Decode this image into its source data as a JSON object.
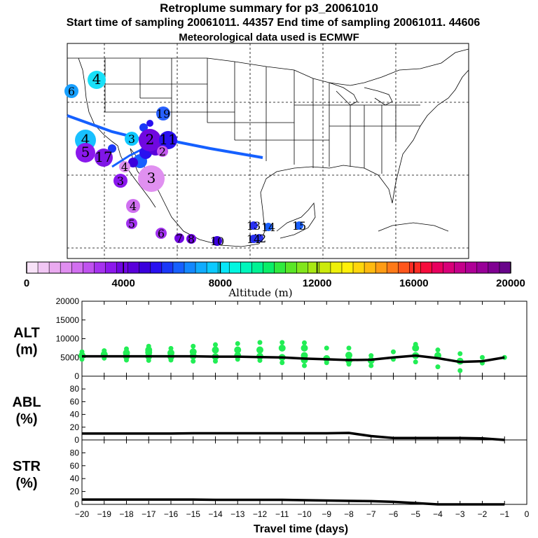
{
  "header": {
    "title": "Retroplume summary for p3_20061010",
    "sampling_line": "Start time of sampling 20061011. 44357     End time of sampling 20061011. 44606",
    "met_line": "Meteorological data used is ECMWF"
  },
  "colors": {
    "line": "#000000",
    "track": "#1560ff",
    "scatter": "#22ee55"
  },
  "colorbar": {
    "min": 0,
    "max": 20000,
    "tick_labels": [
      "0",
      "4000",
      "8000",
      "12000",
      "16000",
      "20000"
    ],
    "tick_values": [
      0,
      4000,
      8000,
      12000,
      16000,
      20000
    ],
    "label": "Altitude (m)",
    "colors": [
      "#f8e2f8",
      "#f1c6f4",
      "#eaaaf0",
      "#e08ef0",
      "#d26ff0",
      "#c052ef",
      "#a632ef",
      "#8c18ec",
      "#7006e2",
      "#5a00da",
      "#3a00dc",
      "#2810f0",
      "#1a38f8",
      "#1760ff",
      "#1388ff",
      "#10acff",
      "#0ccaff",
      "#07e6f8",
      "#02f6e0",
      "#00f6bc",
      "#00f294",
      "#0aee68",
      "#30ea3e",
      "#5ae626",
      "#82e61c",
      "#a8e814",
      "#ccea0c",
      "#eef00a",
      "#fff00a",
      "#ffd60c",
      "#ffba10",
      "#ff9c14",
      "#ff7a18",
      "#ff561c",
      "#ff2c24",
      "#f60c3c",
      "#e8005e",
      "#d80078",
      "#c4008a",
      "#ae0096",
      "#980098",
      "#800092",
      "#68048a"
    ]
  },
  "map_labels": [
    {
      "text": "4",
      "value": 4
    },
    {
      "text": "6",
      "value": 6
    },
    {
      "text": "19",
      "value": 19
    },
    {
      "text": "3",
      "value": 3
    },
    {
      "text": "4",
      "value": 4
    },
    {
      "text": "5",
      "value": 5
    },
    {
      "text": "17",
      "value": 17
    },
    {
      "text": "2",
      "value": 2
    },
    {
      "text": "11",
      "value": 11
    },
    {
      "text": "4",
      "value": 4
    },
    {
      "text": "2",
      "value": 2
    },
    {
      "text": "3",
      "value": 3
    },
    {
      "text": "3",
      "value": 3
    },
    {
      "text": "4",
      "value": 4
    },
    {
      "text": "5",
      "value": 5
    },
    {
      "text": "6",
      "value": 6
    },
    {
      "text": "7",
      "value": 7
    },
    {
      "text": "8",
      "value": 8
    },
    {
      "text": "10",
      "value": 10
    },
    {
      "text": "13",
      "value": 13
    },
    {
      "text": "14",
      "value": 14
    },
    {
      "text": "15",
      "value": 15
    },
    {
      "text": "12",
      "value": 12
    },
    {
      "text": "14",
      "value": 14
    }
  ],
  "chart_data": [
    {
      "type": "line",
      "panel": "ALT",
      "ylabel": "ALT\n(m)",
      "ylabel_lines": [
        "ALT",
        "(m)"
      ],
      "ylim": [
        0,
        20000
      ],
      "yticks": [
        0,
        5000,
        10000,
        15000,
        20000
      ],
      "x": [
        -20,
        -19,
        -18,
        -17,
        -16,
        -15,
        -14,
        -13,
        -12,
        -11,
        -10,
        -9,
        -8,
        -7,
        -6,
        -5,
        -4,
        -3,
        -2,
        -1
      ],
      "mean": [
        5300,
        5300,
        5300,
        5300,
        5300,
        5300,
        5200,
        5200,
        5100,
        5000,
        4700,
        4500,
        4300,
        4400,
        5000,
        5500,
        4800,
        3800,
        4000,
        5000
      ],
      "scatter": [
        {
          "x": -20,
          "y": [
            4500,
            5500,
            6500
          ]
        },
        {
          "x": -19,
          "y": [
            4800,
            5800,
            6800
          ]
        },
        {
          "x": -18,
          "y": [
            4300,
            5300,
            6200,
            7300
          ]
        },
        {
          "x": -17,
          "y": [
            4200,
            5300,
            6300,
            7000,
            8000
          ]
        },
        {
          "x": -16,
          "y": [
            4300,
            5200,
            6200,
            7400
          ]
        },
        {
          "x": -15,
          "y": [
            4000,
            5400,
            6500,
            8000
          ]
        },
        {
          "x": -14,
          "y": [
            4000,
            5200,
            7000,
            8400
          ]
        },
        {
          "x": -13,
          "y": [
            4500,
            5500,
            7000,
            8700
          ]
        },
        {
          "x": -12,
          "y": [
            4200,
            5300,
            7000,
            9000
          ]
        },
        {
          "x": -11,
          "y": [
            3600,
            5000,
            7500,
            9000
          ]
        },
        {
          "x": -10,
          "y": [
            2800,
            4300,
            5500,
            7500,
            8900
          ]
        },
        {
          "x": -9,
          "y": [
            3600,
            4700,
            7500
          ]
        },
        {
          "x": -8,
          "y": [
            3200,
            4200,
            5600,
            7500
          ]
        },
        {
          "x": -7,
          "y": [
            2800,
            4200,
            5500
          ]
        },
        {
          "x": -6,
          "y": [
            4500,
            6500
          ]
        },
        {
          "x": -5,
          "y": [
            3800,
            5500,
            7500,
            8500
          ]
        },
        {
          "x": -4,
          "y": [
            2500,
            5500,
            7000
          ]
        },
        {
          "x": -3,
          "y": [
            1500,
            4000,
            6000
          ]
        },
        {
          "x": -2,
          "y": [
            3500,
            5000
          ]
        },
        {
          "x": -1,
          "y": [
            5000
          ]
        }
      ]
    },
    {
      "type": "line",
      "panel": "ABL",
      "ylabel": "ABL\n(%)",
      "ylabel_lines": [
        "ABL",
        "(%)"
      ],
      "ylim": [
        0,
        100
      ],
      "yticks": [
        0,
        20,
        40,
        60,
        80
      ],
      "x": [
        -20,
        -19,
        -18,
        -17,
        -16,
        -15,
        -14,
        -13,
        -12,
        -11,
        -10,
        -9,
        -8,
        -7,
        -6,
        -5,
        -4,
        -3,
        -2,
        -1
      ],
      "values": [
        10,
        10,
        10,
        10,
        10,
        10.5,
        10.5,
        10.5,
        10.5,
        10.5,
        10.5,
        10.5,
        11,
        6,
        3,
        3,
        3,
        3,
        2.5,
        0
      ]
    },
    {
      "type": "line",
      "panel": "STR",
      "ylabel": "STR\n(%)",
      "ylabel_lines": [
        "STR",
        "(%)"
      ],
      "ylim": [
        0,
        100
      ],
      "yticks": [
        0,
        20,
        40,
        60,
        80
      ],
      "x": [
        -20,
        -19,
        -18,
        -17,
        -16,
        -15,
        -14,
        -13,
        -12,
        -11,
        -10,
        -9,
        -8,
        -7,
        -6,
        -5,
        -4,
        -3,
        -2,
        -1
      ],
      "values": [
        7.5,
        7.5,
        7.5,
        7.5,
        7.5,
        7.5,
        7,
        7,
        7,
        7,
        6.5,
        6,
        5.5,
        5,
        4,
        2,
        0,
        0,
        0,
        0
      ],
      "xlabel": "Travel time (days)",
      "xticks": [
        -20,
        -19,
        -18,
        -17,
        -16,
        -15,
        -14,
        -13,
        -12,
        -11,
        -10,
        -9,
        -8,
        -7,
        -6,
        -5,
        -4,
        -3,
        -2,
        -1,
        0
      ],
      "xtick_labels": [
        "−20",
        "−19",
        "−18",
        "−17",
        "−16",
        "−15",
        "−14",
        "−13",
        "−12",
        "−11",
        "−10",
        "−9",
        "−8",
        "−7",
        "−6",
        "−5",
        "−4",
        "−3",
        "−2",
        "−1",
        "0"
      ]
    }
  ]
}
